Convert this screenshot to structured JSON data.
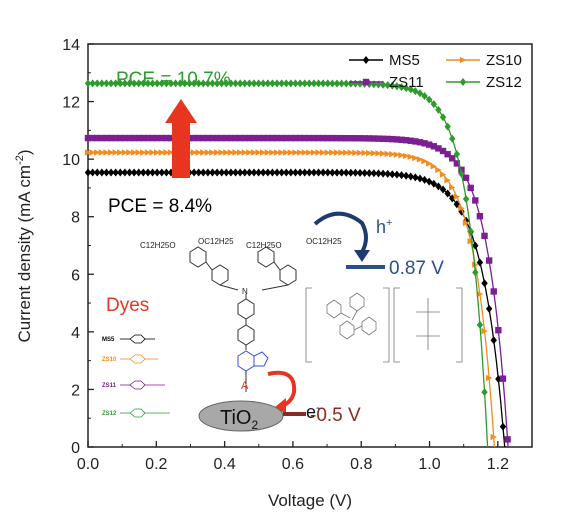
{
  "chart_data": {
    "type": "line",
    "xlabel": "Voltage (V)",
    "ylabel": "Current density (mA cm",
    "ylabel_sup": "-2",
    "ylabel_end": ")",
    "xlim": [
      0.0,
      1.3
    ],
    "ylim": [
      0,
      14
    ],
    "x_ticks": [
      "0.0",
      "0.2",
      "0.4",
      "0.6",
      "0.8",
      "1.0",
      "1.2"
    ],
    "y_ticks": [
      "0",
      "2",
      "4",
      "6",
      "8",
      "10",
      "12",
      "14"
    ],
    "legend_position": "top-right",
    "series": [
      {
        "name": "MS5",
        "color": "#000000",
        "marker": "diamond",
        "jsc": 9.3,
        "voc": 1.22,
        "vk": 0.98,
        "n": 0.065
      },
      {
        "name": "ZS10",
        "color": "#f28c1e",
        "marker": "triangle-right",
        "jsc": 10.0,
        "voc": 1.19,
        "vk": 0.97,
        "n": 0.058
      },
      {
        "name": "ZS11",
        "color": "#7b1f93",
        "marker": "square",
        "jsc": 10.5,
        "voc": 1.23,
        "vk": 1.0,
        "n": 0.06
      },
      {
        "name": "ZS12",
        "color": "#2e9b2e",
        "marker": "diamond",
        "jsc": 12.3,
        "voc": 1.17,
        "vk": 0.97,
        "n": 0.055
      }
    ],
    "annotations": {
      "pce_high": "PCE = 10.7%",
      "pce_low": "PCE = 8.4%",
      "hole_label": "h",
      "hole_sup": "+",
      "hole_level": "0.87 V",
      "electron_label": "e",
      "electron_sup": "-",
      "tio2": "TiO",
      "tio2_sub": "2",
      "tio2_level": "-0.5 V",
      "dyes_title": "Dyes",
      "dyes": [
        "MS5",
        "ZS10",
        "ZS11",
        "ZS12"
      ],
      "anchor": "A",
      "nitrogen": "N",
      "alkoxy": [
        "C12H25O",
        "OC12H25",
        "C12H25O",
        "OC12H25"
      ]
    },
    "colors": {
      "arrow": "#e8351f",
      "pce_high": "#2e9b2e",
      "pce_low": "#000000",
      "hole_level": "#2b4f86",
      "tio2_level": "#8a2a22",
      "acceptor": "#3a4fd0"
    }
  }
}
